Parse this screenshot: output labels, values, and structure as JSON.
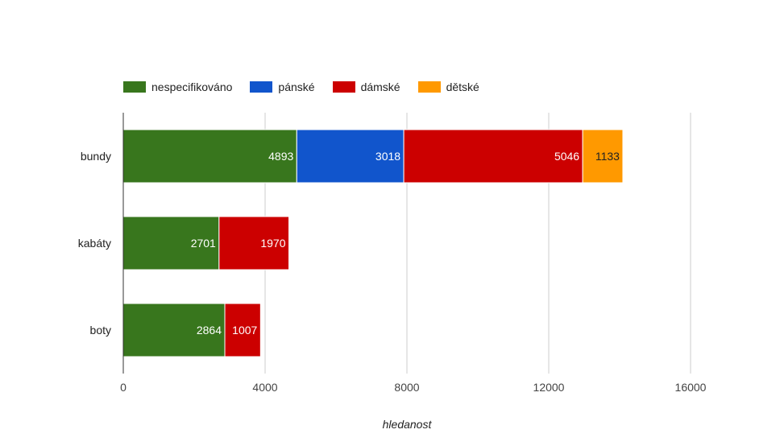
{
  "chart_data": {
    "type": "bar",
    "orientation": "horizontal",
    "stacked": true,
    "categories": [
      "bundy",
      "kabáty",
      "boty"
    ],
    "series": [
      {
        "name": "nespecifikováno",
        "color": "#38761d",
        "values": [
          4893,
          2701,
          2864
        ]
      },
      {
        "name": "pánské",
        "color": "#1155cc",
        "values": [
          3018,
          null,
          null
        ]
      },
      {
        "name": "dámské",
        "color": "#cc0000",
        "values": [
          5046,
          1970,
          1007
        ]
      },
      {
        "name": "dětské",
        "color": "#ff9900",
        "values": [
          1133,
          null,
          null
        ]
      }
    ],
    "xlabel": "hledanost",
    "xlim": [
      0,
      16000
    ],
    "xticks": [
      0,
      4000,
      8000,
      12000,
      16000
    ],
    "grid": true,
    "legend_position": "top-left"
  }
}
